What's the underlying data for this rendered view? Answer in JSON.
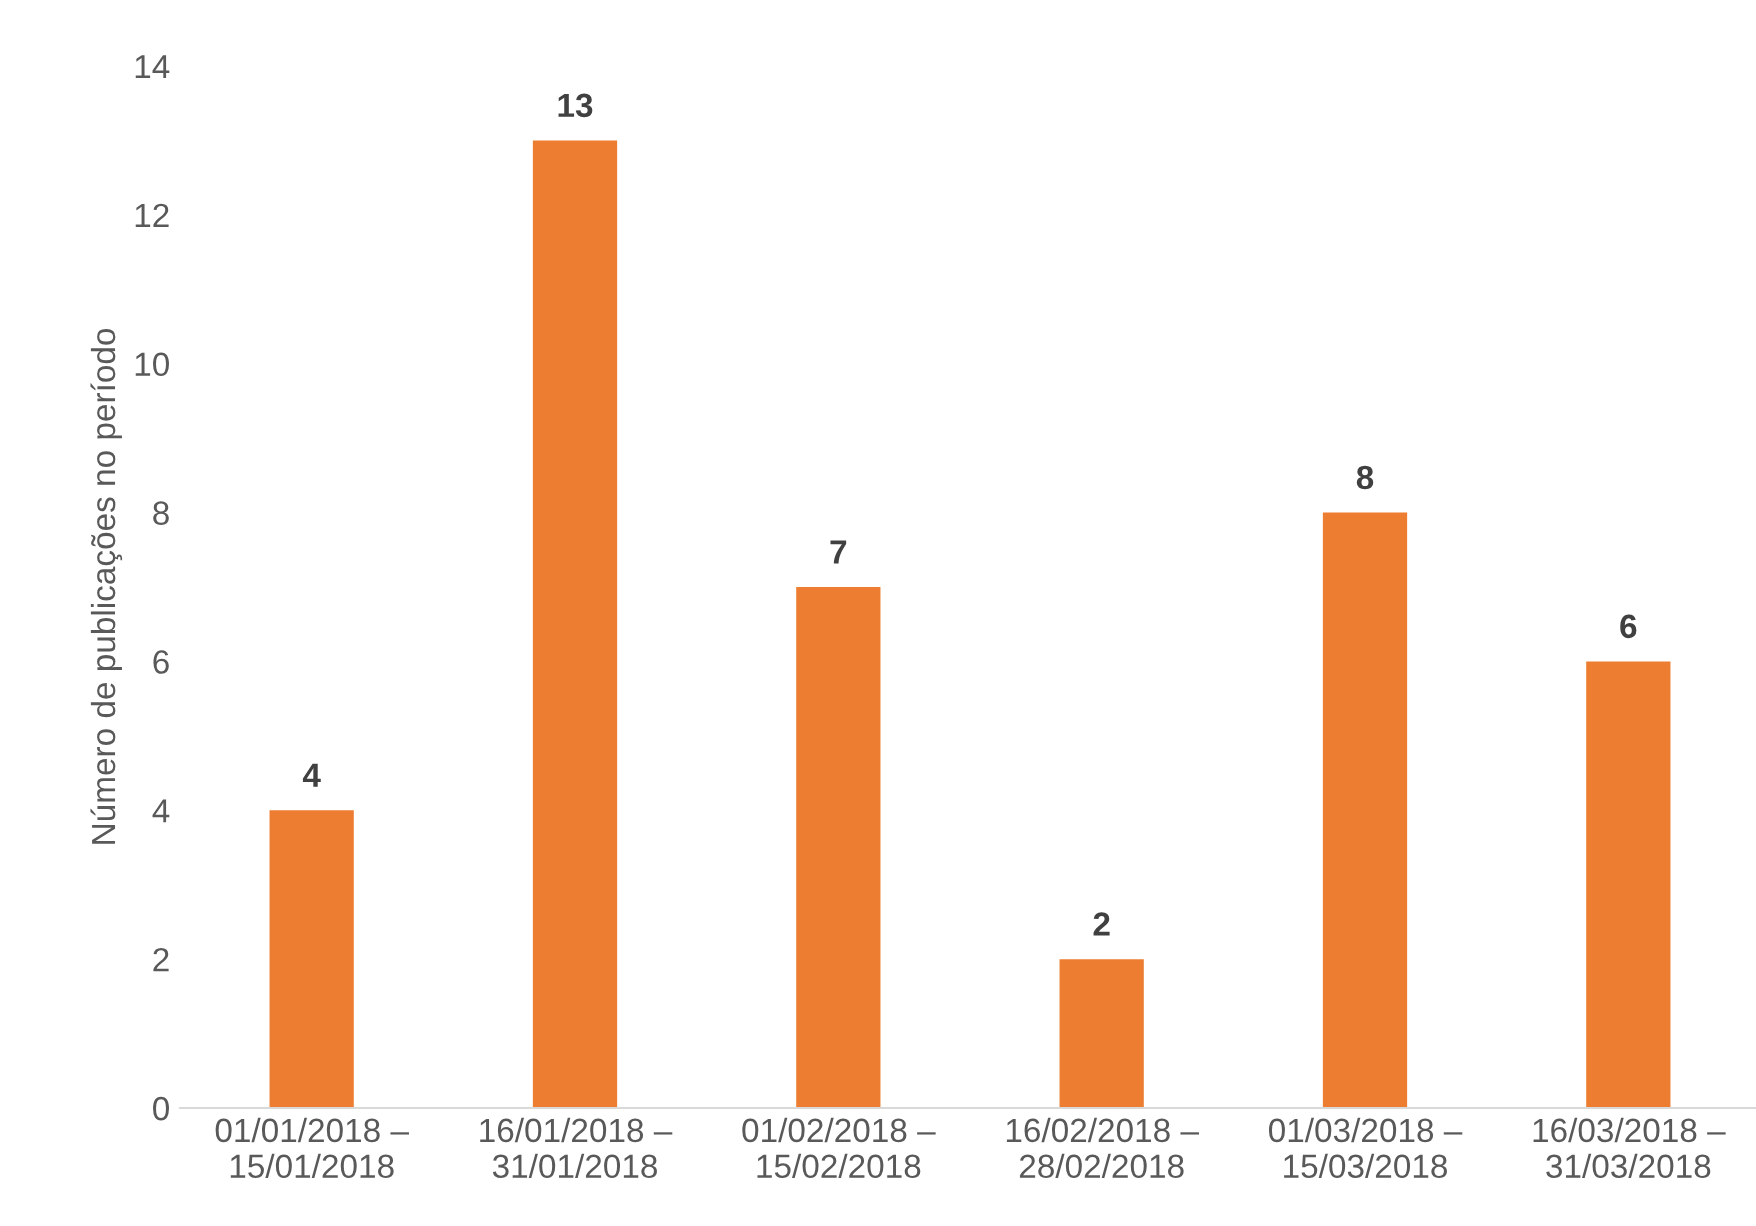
{
  "chart_data": {
    "type": "bar",
    "ylabel": "Número de publicações no período",
    "categories": [
      "01/01/2018 –\n15/01/2018",
      "16/01/2018 –\n31/01/2018",
      "01/02/2018 –\n15/02/2018",
      "16/02/2018 –\n28/02/2018",
      "01/03/2018 –\n15/03/2018",
      "16/03/2018 –\n31/03/2018"
    ],
    "values": [
      4,
      13,
      7,
      2,
      8,
      6
    ],
    "color": "#ed7d31",
    "ylim": [
      0,
      14
    ],
    "yticks": [
      0,
      2,
      4,
      6,
      8,
      10,
      12,
      14
    ],
    "data_labels": true,
    "grid": false,
    "legend": false
  }
}
